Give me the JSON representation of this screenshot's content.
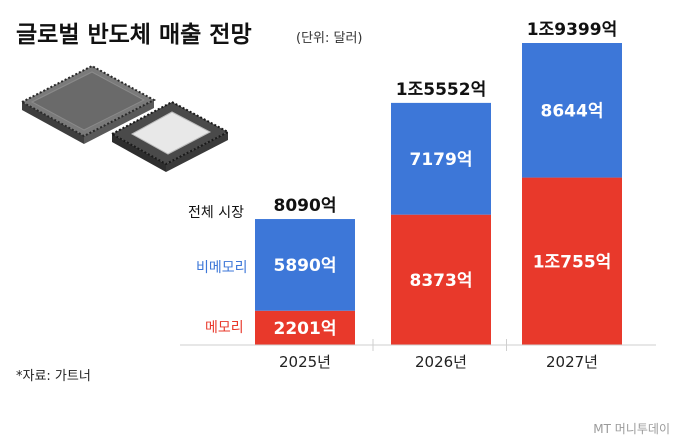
{
  "chart_data": {
    "type": "bar",
    "stacked": true,
    "title": "글로벌 반도체 매출 전망",
    "unit_note": "(단위: 달러)",
    "categories": [
      "2025년",
      "2026년",
      "2027년"
    ],
    "series": [
      {
        "name": "메모리",
        "color": "#e8392b",
        "values": [
          2201,
          8373,
          10755
        ],
        "labels": [
          "2201억",
          "8373억",
          "1조755억"
        ]
      },
      {
        "name": "비메모리",
        "color": "#3d77d8",
        "values": [
          5890,
          7179,
          8644
        ],
        "labels": [
          "5890억",
          "7179억",
          "8644억"
        ]
      }
    ],
    "totals": {
      "name": "전체 시장",
      "values": [
        8090,
        15552,
        19399
      ],
      "labels": [
        "8090억",
        "1조5552억",
        "1조9399억"
      ]
    },
    "ylim": [
      0,
      19399
    ],
    "grid": false,
    "legend_position": "left"
  },
  "source": "*자료: 가트너",
  "credit": "MT 머니투데이",
  "colors": {
    "memory": "#e8392b",
    "non_memory": "#3d77d8",
    "legend_label": "#111111"
  },
  "decoration": "chip-illustration"
}
